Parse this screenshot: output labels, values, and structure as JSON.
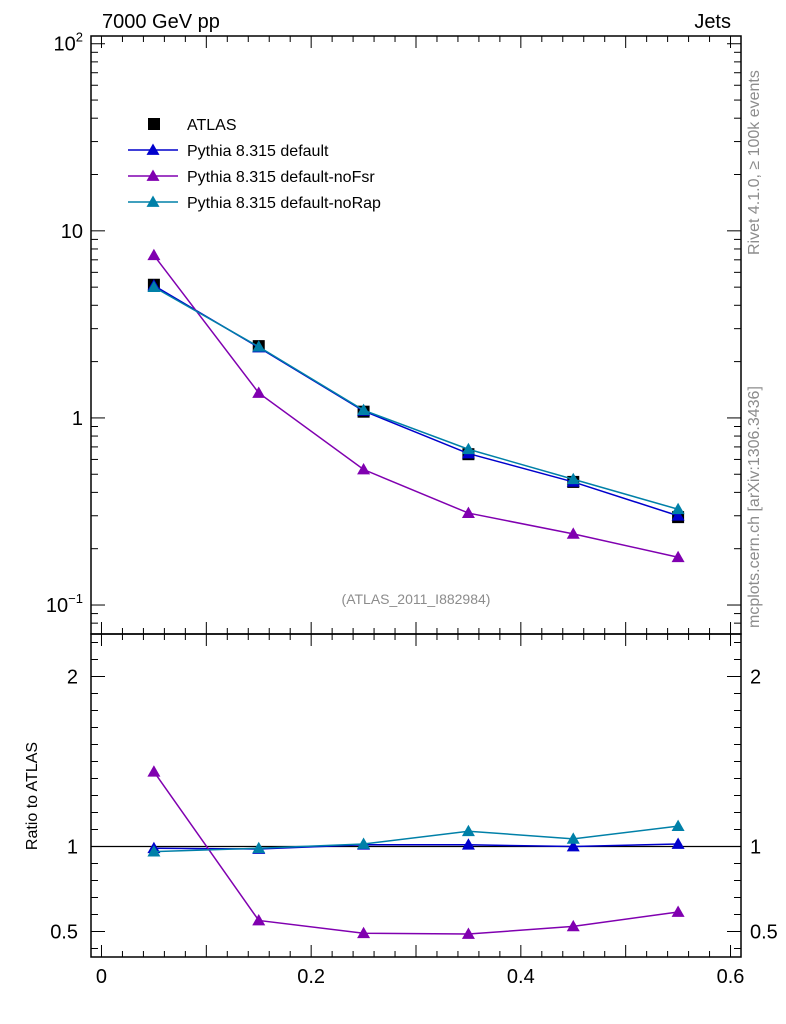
{
  "header": {
    "left": "7000 GeV pp",
    "right": "Jets"
  },
  "side_labels": {
    "rivet": "Rivet 4.1.0, ≥ 100k events",
    "mcplots": "mcplots.cern.ch [arXiv:1306.3436]"
  },
  "colors": {
    "atlas": "#000000",
    "default": "#0000cc",
    "noFsr": "#8000b0",
    "noRap": "#0080a8",
    "watermark": "#8c8c8c"
  },
  "chart_data": [
    {
      "type": "line",
      "panel": "main",
      "yscale": "log",
      "xlim": [
        -0.01,
        0.61
      ],
      "ylim": [
        0.07,
        110
      ],
      "ytick_values": [
        0.1,
        1,
        10,
        100
      ],
      "ytick_labels": [
        {
          "base": "10",
          "exp": "−1"
        },
        {
          "base": "1",
          "exp": ""
        },
        {
          "base": "10",
          "exp": ""
        },
        {
          "base": "10",
          "exp": "2"
        }
      ],
      "watermark": "(ATLAS_2011_I882984)",
      "legend_position": "top-left",
      "x": [
        0.05,
        0.15,
        0.25,
        0.35,
        0.45,
        0.55
      ],
      "series": [
        {
          "name": "ATLAS",
          "marker": "square",
          "color_key": "atlas",
          "values": [
            5.15,
            2.42,
            1.08,
            0.64,
            0.455,
            0.295
          ]
        },
        {
          "name": "Pythia 8.315 default",
          "marker": "triangle",
          "color_key": "default",
          "values": [
            5.1,
            2.38,
            1.09,
            0.645,
            0.455,
            0.3
          ]
        },
        {
          "name": "Pythia 8.315 default-noFsr",
          "marker": "triangle",
          "color_key": "noFsr",
          "values": [
            7.4,
            1.36,
            0.53,
            0.31,
            0.24,
            0.18
          ]
        },
        {
          "name": "Pythia 8.315 default-noRap",
          "marker": "triangle",
          "color_key": "noRap",
          "values": [
            5.0,
            2.4,
            1.1,
            0.68,
            0.47,
            0.325
          ]
        }
      ]
    },
    {
      "type": "line",
      "panel": "ratio",
      "ylabel": "Ratio to ATLAS",
      "xlim": [
        -0.01,
        0.61
      ],
      "ylim": [
        0.35,
        2.25
      ],
      "ytick_values": [
        0.5,
        1,
        2
      ],
      "ytick_labels": [
        "0.5",
        "1",
        "2"
      ],
      "xtick_values": [
        0,
        0.2,
        0.4,
        0.6
      ],
      "xtick_labels": [
        "0",
        "0.2",
        "0.4",
        "0.6"
      ],
      "x": [
        0.05,
        0.15,
        0.25,
        0.35,
        0.45,
        0.55
      ],
      "series": [
        {
          "name": "Pythia 8.315 default",
          "color_key": "default",
          "values": [
            0.99,
            0.985,
            1.01,
            1.01,
            1.0,
            1.015
          ],
          "errors": [
            0.01,
            0.01,
            0.012,
            0.015,
            0.015,
            0.02
          ]
        },
        {
          "name": "Pythia 8.315 default-noFsr",
          "color_key": "noFsr",
          "values": [
            1.44,
            0.565,
            0.49,
            0.485,
            0.53,
            0.615
          ],
          "errors": [
            0.02,
            0.01,
            0.012,
            0.012,
            0.015,
            0.02
          ]
        },
        {
          "name": "Pythia 8.315 default-noRap",
          "color_key": "noRap",
          "values": [
            0.97,
            0.99,
            1.015,
            1.09,
            1.045,
            1.12
          ],
          "errors": [
            0.01,
            0.01,
            0.012,
            0.02,
            0.02,
            0.025
          ]
        }
      ]
    }
  ]
}
